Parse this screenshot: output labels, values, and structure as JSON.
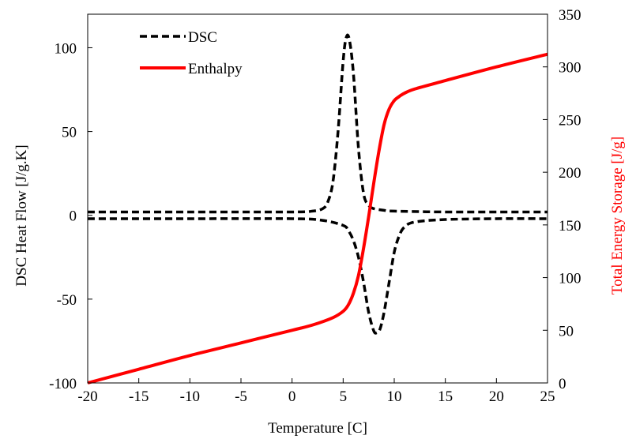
{
  "chart_data": {
    "type": "line",
    "title": "",
    "xlabel": "Temperature [C]",
    "ylabel": "DSC Heat Flow [J/g.K]",
    "y2label": "Total Energy Storage [J/g]",
    "xlim": [
      -20,
      25
    ],
    "ylim": [
      -100,
      120
    ],
    "y2lim": [
      0,
      350
    ],
    "xticks": [
      "-20",
      "-15",
      "-10",
      "-5",
      "0",
      "5",
      "10",
      "15",
      "20",
      "25"
    ],
    "yticks": [
      "-100",
      "-50",
      "0",
      "50",
      "100"
    ],
    "y2ticks": [
      "0",
      "50",
      "100",
      "150",
      "200",
      "250",
      "300",
      "350"
    ],
    "grid": false,
    "legend_position": "top-left",
    "colors": {
      "dsc": "#000000",
      "enthalpy": "#ff0000",
      "axis": "#000000",
      "y2label": "#ff0000"
    },
    "legend": [
      "DSC",
      "Enthalpy"
    ],
    "series": [
      {
        "name": "DSC",
        "axis": "left",
        "style": "dashed",
        "color": "#000000",
        "segments": [
          {
            "x": [
              -20,
              -10,
              0,
              2,
              3,
              3.5,
              4,
              4.5,
              5,
              5.3,
              5.6,
              6,
              6.5,
              7,
              7.5,
              8,
              9,
              10,
              15,
              20,
              25
            ],
            "y": [
              2,
              2,
              2,
              2.5,
              4,
              8,
              20,
              50,
              92,
              106,
              105,
              85,
              40,
              13,
              6,
              4,
              3,
              2.5,
              2,
              2,
              2
            ]
          },
          {
            "x": [
              -20,
              -10,
              0,
              3,
              5,
              5.5,
              6,
              6.5,
              7,
              7.5,
              8,
              8.3,
              8.6,
              9,
              9.5,
              10,
              10.5,
              11,
              12,
              15,
              20,
              25
            ],
            "y": [
              -2,
              -2,
              -2,
              -3,
              -6,
              -9,
              -15,
              -25,
              -40,
              -58,
              -69,
              -70,
              -68,
              -58,
              -40,
              -22,
              -12,
              -7,
              -4,
              -2.5,
              -2,
              -2
            ]
          }
        ]
      },
      {
        "name": "Enthalpy",
        "axis": "right",
        "style": "solid",
        "color": "#ff0000",
        "x": [
          -20,
          -15,
          -10,
          -5,
          0,
          2,
          4,
          5,
          5.5,
          6,
          6.5,
          7,
          7.5,
          8,
          8.5,
          9,
          9.5,
          10,
          10.5,
          11,
          12,
          15,
          20,
          25
        ],
        "y": [
          0,
          13,
          26,
          38,
          50,
          55,
          62,
          68,
          74,
          85,
          102,
          128,
          158,
          190,
          220,
          245,
          260,
          268,
          272,
          275,
          279,
          287,
          300,
          312
        ]
      }
    ]
  }
}
